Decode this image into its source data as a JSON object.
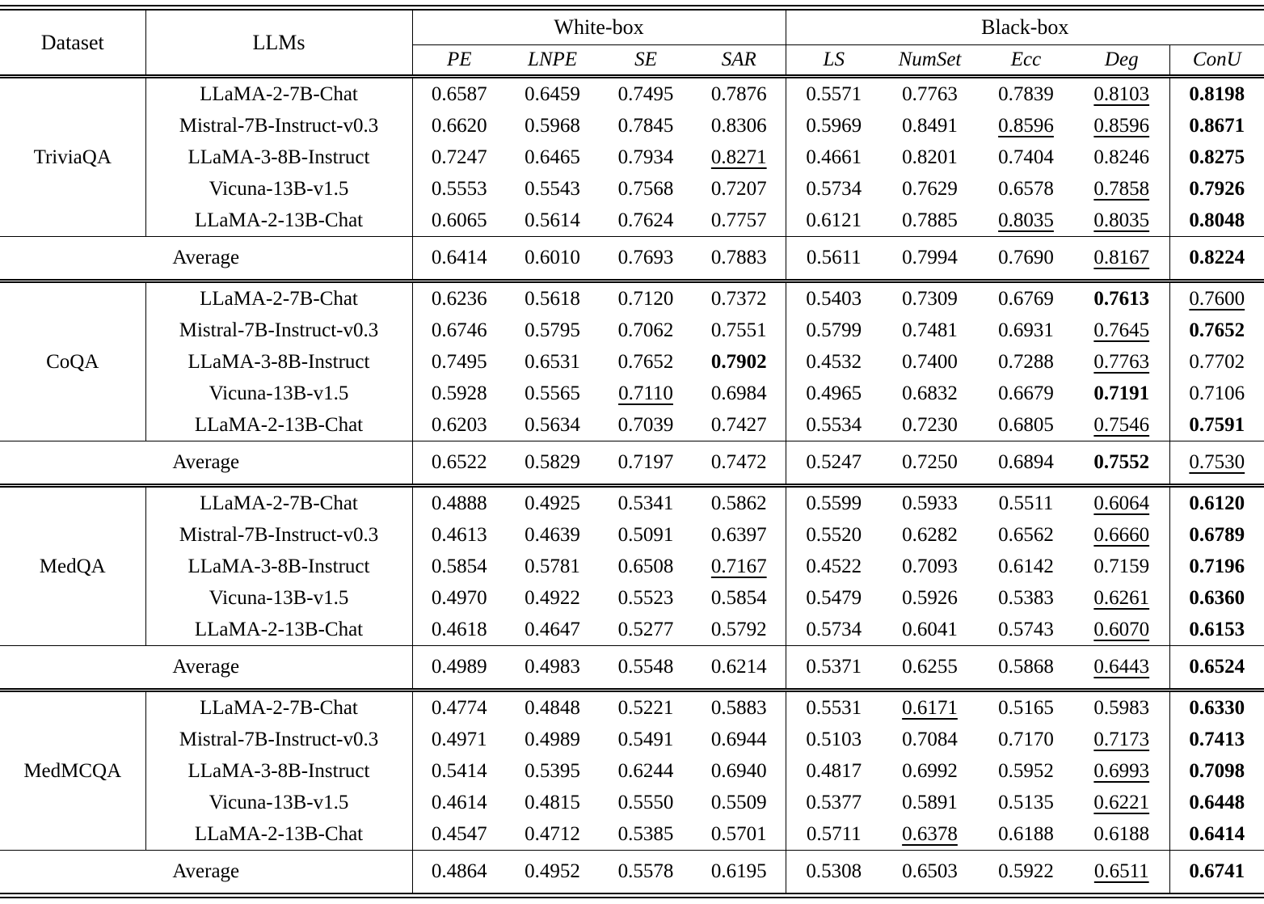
{
  "table": {
    "header": {
      "dataset": "Dataset",
      "llms": "LLMs",
      "white_box": "White-box",
      "black_box": "Black-box",
      "metrics": [
        "PE",
        "LNPE",
        "SE",
        "SAR",
        "LS",
        "NumSet",
        "Ecc",
        "Deg",
        "ConU"
      ]
    },
    "average_label": "Average",
    "style_legend": {
      "b": "bold-best",
      "u": "underline-second-best"
    },
    "sections": [
      {
        "dataset": "TriviaQA",
        "rows": [
          {
            "llm": "LLaMA-2-7B-Chat",
            "values": [
              "0.6587",
              "0.6459",
              "0.7495",
              "0.7876",
              "0.5571",
              "0.7763",
              "0.7839",
              "0.8103",
              "0.8198"
            ],
            "styles": [
              "",
              "",
              "",
              "",
              "",
              "",
              "",
              "u",
              "b"
            ]
          },
          {
            "llm": "Mistral-7B-Instruct-v0.3",
            "values": [
              "0.6620",
              "0.5968",
              "0.7845",
              "0.8306",
              "0.5969",
              "0.8491",
              "0.8596",
              "0.8596",
              "0.8671"
            ],
            "styles": [
              "",
              "",
              "",
              "",
              "",
              "",
              "u",
              "u",
              "b"
            ]
          },
          {
            "llm": "LLaMA-3-8B-Instruct",
            "values": [
              "0.7247",
              "0.6465",
              "0.7934",
              "0.8271",
              "0.4661",
              "0.8201",
              "0.7404",
              "0.8246",
              "0.8275"
            ],
            "styles": [
              "",
              "",
              "",
              "u",
              "",
              "",
              "",
              "",
              "b"
            ]
          },
          {
            "llm": "Vicuna-13B-v1.5",
            "values": [
              "0.5553",
              "0.5543",
              "0.7568",
              "0.7207",
              "0.5734",
              "0.7629",
              "0.6578",
              "0.7858",
              "0.7926"
            ],
            "styles": [
              "",
              "",
              "",
              "",
              "",
              "",
              "",
              "u",
              "b"
            ]
          },
          {
            "llm": "LLaMA-2-13B-Chat",
            "values": [
              "0.6065",
              "0.5614",
              "0.7624",
              "0.7757",
              "0.6121",
              "0.7885",
              "0.8035",
              "0.8035",
              "0.8048"
            ],
            "styles": [
              "",
              "",
              "",
              "",
              "",
              "",
              "u",
              "u",
              "b"
            ]
          }
        ],
        "average": {
          "values": [
            "0.6414",
            "0.6010",
            "0.7693",
            "0.7883",
            "0.5611",
            "0.7994",
            "0.7690",
            "0.8167",
            "0.8224"
          ],
          "styles": [
            "",
            "",
            "",
            "",
            "",
            "",
            "",
            "u",
            "b"
          ]
        }
      },
      {
        "dataset": "CoQA",
        "rows": [
          {
            "llm": "LLaMA-2-7B-Chat",
            "values": [
              "0.6236",
              "0.5618",
              "0.7120",
              "0.7372",
              "0.5403",
              "0.7309",
              "0.6769",
              "0.7613",
              "0.7600"
            ],
            "styles": [
              "",
              "",
              "",
              "",
              "",
              "",
              "",
              "b",
              "u"
            ]
          },
          {
            "llm": "Mistral-7B-Instruct-v0.3",
            "values": [
              "0.6746",
              "0.5795",
              "0.7062",
              "0.7551",
              "0.5799",
              "0.7481",
              "0.6931",
              "0.7645",
              "0.7652"
            ],
            "styles": [
              "",
              "",
              "",
              "",
              "",
              "",
              "",
              "u",
              "b"
            ]
          },
          {
            "llm": "LLaMA-3-8B-Instruct",
            "values": [
              "0.7495",
              "0.6531",
              "0.7652",
              "0.7902",
              "0.4532",
              "0.7400",
              "0.7288",
              "0.7763",
              "0.7702"
            ],
            "styles": [
              "",
              "",
              "",
              "b",
              "",
              "",
              "",
              "u",
              ""
            ]
          },
          {
            "llm": "Vicuna-13B-v1.5",
            "values": [
              "0.5928",
              "0.5565",
              "0.7110",
              "0.6984",
              "0.4965",
              "0.6832",
              "0.6679",
              "0.7191",
              "0.7106"
            ],
            "styles": [
              "",
              "",
              "u",
              "",
              "",
              "",
              "",
              "b",
              ""
            ]
          },
          {
            "llm": "LLaMA-2-13B-Chat",
            "values": [
              "0.6203",
              "0.5634",
              "0.7039",
              "0.7427",
              "0.5534",
              "0.7230",
              "0.6805",
              "0.7546",
              "0.7591"
            ],
            "styles": [
              "",
              "",
              "",
              "",
              "",
              "",
              "",
              "u",
              "b"
            ]
          }
        ],
        "average": {
          "values": [
            "0.6522",
            "0.5829",
            "0.7197",
            "0.7472",
            "0.5247",
            "0.7250",
            "0.6894",
            "0.7552",
            "0.7530"
          ],
          "styles": [
            "",
            "",
            "",
            "",
            "",
            "",
            "",
            "b",
            "u"
          ]
        }
      },
      {
        "dataset": "MedQA",
        "rows": [
          {
            "llm": "LLaMA-2-7B-Chat",
            "values": [
              "0.4888",
              "0.4925",
              "0.5341",
              "0.5862",
              "0.5599",
              "0.5933",
              "0.5511",
              "0.6064",
              "0.6120"
            ],
            "styles": [
              "",
              "",
              "",
              "",
              "",
              "",
              "",
              "u",
              "b"
            ]
          },
          {
            "llm": "Mistral-7B-Instruct-v0.3",
            "values": [
              "0.4613",
              "0.4639",
              "0.5091",
              "0.6397",
              "0.5520",
              "0.6282",
              "0.6562",
              "0.6660",
              "0.6789"
            ],
            "styles": [
              "",
              "",
              "",
              "",
              "",
              "",
              "",
              "u",
              "b"
            ]
          },
          {
            "llm": "LLaMA-3-8B-Instruct",
            "values": [
              "0.5854",
              "0.5781",
              "0.6508",
              "0.7167",
              "0.4522",
              "0.7093",
              "0.6142",
              "0.7159",
              "0.7196"
            ],
            "styles": [
              "",
              "",
              "",
              "u",
              "",
              "",
              "",
              "",
              "b"
            ]
          },
          {
            "llm": "Vicuna-13B-v1.5",
            "values": [
              "0.4970",
              "0.4922",
              "0.5523",
              "0.5854",
              "0.5479",
              "0.5926",
              "0.5383",
              "0.6261",
              "0.6360"
            ],
            "styles": [
              "",
              "",
              "",
              "",
              "",
              "",
              "",
              "u",
              "b"
            ]
          },
          {
            "llm": "LLaMA-2-13B-Chat",
            "values": [
              "0.4618",
              "0.4647",
              "0.5277",
              "0.5792",
              "0.5734",
              "0.6041",
              "0.5743",
              "0.6070",
              "0.6153"
            ],
            "styles": [
              "",
              "",
              "",
              "",
              "",
              "",
              "",
              "u",
              "b"
            ]
          }
        ],
        "average": {
          "values": [
            "0.4989",
            "0.4983",
            "0.5548",
            "0.6214",
            "0.5371",
            "0.6255",
            "0.5868",
            "0.6443",
            "0.6524"
          ],
          "styles": [
            "",
            "",
            "",
            "",
            "",
            "",
            "",
            "u",
            "b"
          ]
        }
      },
      {
        "dataset": "MedMCQA",
        "rows": [
          {
            "llm": "LLaMA-2-7B-Chat",
            "values": [
              "0.4774",
              "0.4848",
              "0.5221",
              "0.5883",
              "0.5531",
              "0.6171",
              "0.5165",
              "0.5983",
              "0.6330"
            ],
            "styles": [
              "",
              "",
              "",
              "",
              "",
              "u",
              "",
              "",
              "b"
            ]
          },
          {
            "llm": "Mistral-7B-Instruct-v0.3",
            "values": [
              "0.4971",
              "0.4989",
              "0.5491",
              "0.6944",
              "0.5103",
              "0.7084",
              "0.7170",
              "0.7173",
              "0.7413"
            ],
            "styles": [
              "",
              "",
              "",
              "",
              "",
              "",
              "",
              "u",
              "b"
            ]
          },
          {
            "llm": "LLaMA-3-8B-Instruct",
            "values": [
              "0.5414",
              "0.5395",
              "0.6244",
              "0.6940",
              "0.4817",
              "0.6992",
              "0.5952",
              "0.6993",
              "0.7098"
            ],
            "styles": [
              "",
              "",
              "",
              "",
              "",
              "",
              "",
              "u",
              "b"
            ]
          },
          {
            "llm": "Vicuna-13B-v1.5",
            "values": [
              "0.4614",
              "0.4815",
              "0.5550",
              "0.5509",
              "0.5377",
              "0.5891",
              "0.5135",
              "0.6221",
              "0.6448"
            ],
            "styles": [
              "",
              "",
              "",
              "",
              "",
              "",
              "",
              "u",
              "b"
            ]
          },
          {
            "llm": "LLaMA-2-13B-Chat",
            "values": [
              "0.4547",
              "0.4712",
              "0.5385",
              "0.5701",
              "0.5711",
              "0.6378",
              "0.6188",
              "0.6188",
              "0.6414"
            ],
            "styles": [
              "",
              "",
              "",
              "",
              "",
              "u",
              "",
              "",
              "b"
            ]
          }
        ],
        "average": {
          "values": [
            "0.4864",
            "0.4952",
            "0.5578",
            "0.6195",
            "0.5308",
            "0.6503",
            "0.5922",
            "0.6511",
            "0.6741"
          ],
          "styles": [
            "",
            "",
            "",
            "",
            "",
            "",
            "",
            "u",
            "b"
          ]
        }
      }
    ]
  }
}
